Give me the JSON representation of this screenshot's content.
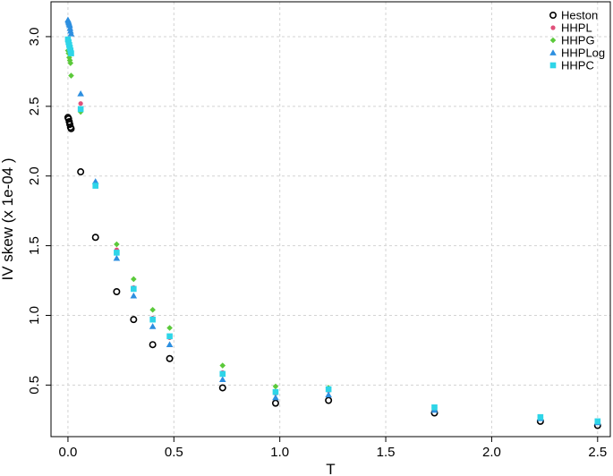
{
  "chart_data": {
    "type": "scatter",
    "title": "",
    "xlabel": "T",
    "ylabel": "IV skew (x 1e-04 )",
    "xlim": [
      -0.08,
      2.56
    ],
    "ylim": [
      0.13,
      3.25
    ],
    "xticks": [
      0.0,
      0.5,
      1.0,
      1.5,
      2.0,
      2.5
    ],
    "xtick_labels": [
      "0.0",
      "0.5",
      "1.0",
      "1.5",
      "2.0",
      "2.5"
    ],
    "yticks": [
      0.5,
      1.0,
      1.5,
      2.0,
      2.5,
      3.0
    ],
    "ytick_labels": [
      "0.5",
      "1.0",
      "1.5",
      "2.0",
      "2.5",
      "3.0"
    ],
    "grid": true,
    "legend_position": "top-right",
    "series": [
      {
        "name": "Heston",
        "marker": "circle-open",
        "color": "#000000",
        "x": [
          0.0,
          0.003,
          0.006,
          0.009,
          0.012,
          0.015,
          0.06,
          0.13,
          0.23,
          0.31,
          0.4,
          0.48,
          0.73,
          0.98,
          1.23,
          1.73,
          2.23,
          2.5
        ],
        "y": [
          2.42,
          2.41,
          2.39,
          2.37,
          2.35,
          2.34,
          2.03,
          1.56,
          1.17,
          0.97,
          0.79,
          0.69,
          0.48,
          0.37,
          0.39,
          0.3,
          0.24,
          0.21
        ]
      },
      {
        "name": "HHPL",
        "marker": "circle-filled",
        "color": "#e0507a",
        "x": [
          0.0,
          0.005,
          0.01,
          0.015,
          0.06,
          0.13,
          0.23,
          0.31,
          0.4,
          0.48,
          0.73,
          0.98,
          1.23,
          1.73,
          2.23,
          2.5
        ],
        "y": [
          2.96,
          2.94,
          2.92,
          2.9,
          2.52,
          1.95,
          1.47,
          1.2,
          0.98,
          0.84,
          0.59,
          0.44,
          0.46,
          0.34,
          0.27,
          0.24
        ]
      },
      {
        "name": "HHPG",
        "marker": "diamond",
        "color": "#5bc93a",
        "x": [
          0.0,
          0.003,
          0.006,
          0.009,
          0.012,
          0.015,
          0.06,
          0.13,
          0.23,
          0.31,
          0.4,
          0.48,
          0.73,
          0.98,
          1.23,
          1.73,
          2.23,
          2.5
        ],
        "y": [
          2.9,
          2.88,
          2.85,
          2.83,
          2.81,
          2.72,
          2.46,
          1.95,
          1.51,
          1.26,
          1.04,
          0.91,
          0.64,
          0.49,
          0.48,
          0.34,
          0.27,
          0.24
        ]
      },
      {
        "name": "HHPLog",
        "marker": "triangle",
        "color": "#2d8fe0",
        "x": [
          0.0,
          0.002,
          0.004,
          0.006,
          0.008,
          0.01,
          0.012,
          0.015,
          0.06,
          0.13,
          0.23,
          0.31,
          0.4,
          0.48,
          0.73,
          0.98,
          1.23,
          1.73,
          2.23,
          2.5
        ],
        "y": [
          3.12,
          3.11,
          3.1,
          3.09,
          3.08,
          3.06,
          3.04,
          3.02,
          2.59,
          1.96,
          1.41,
          1.14,
          0.92,
          0.79,
          0.54,
          0.41,
          0.43,
          0.32,
          0.26,
          0.23
        ]
      },
      {
        "name": "HHPC",
        "marker": "square",
        "color": "#2ed5e8",
        "x": [
          0.0,
          0.003,
          0.006,
          0.009,
          0.012,
          0.015,
          0.06,
          0.13,
          0.23,
          0.31,
          0.4,
          0.48,
          0.73,
          0.98,
          1.23,
          1.73,
          2.23,
          2.5
        ],
        "y": [
          2.98,
          2.96,
          2.94,
          2.92,
          2.9,
          2.88,
          2.48,
          1.93,
          1.45,
          1.19,
          0.97,
          0.85,
          0.58,
          0.45,
          0.47,
          0.34,
          0.27,
          0.24
        ]
      }
    ]
  }
}
